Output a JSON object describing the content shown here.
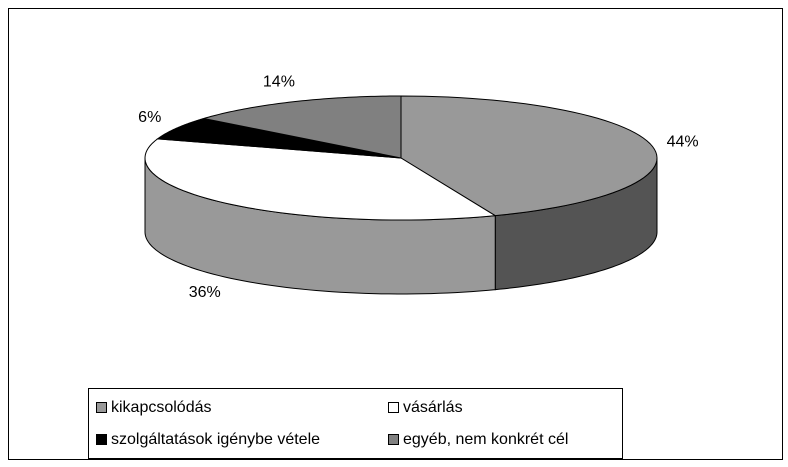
{
  "chart_data": {
    "type": "pie3d",
    "categories": [
      "kikapcsolódás",
      "vásárlás",
      "szolgáltatások igénybe vétele",
      "egyéb, nem konkrét cél"
    ],
    "values": [
      44,
      36,
      6,
      14
    ],
    "value_labels": [
      "44%",
      "36%",
      "6%",
      "14%"
    ],
    "colors": [
      "#999999",
      "#ffffff",
      "#000000",
      "#808080"
    ]
  }
}
